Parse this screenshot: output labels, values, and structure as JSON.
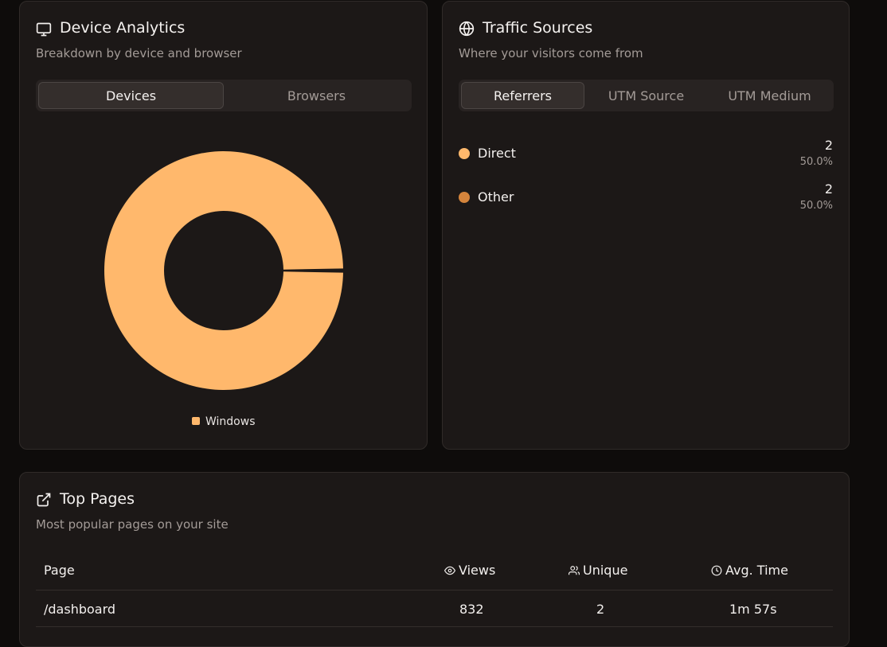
{
  "device_analytics": {
    "title": "Device Analytics",
    "subtitle": "Breakdown by device and browser",
    "tabs": [
      "Devices",
      "Browsers"
    ],
    "active_tab": 0,
    "chart": {
      "type": "pie",
      "categories": [
        "Windows"
      ],
      "values": [
        100
      ],
      "colors": [
        "#ffb86c"
      ]
    }
  },
  "traffic_sources": {
    "title": "Traffic Sources",
    "subtitle": "Where your visitors come from",
    "tabs": [
      "Referrers",
      "UTM Source",
      "UTM Medium"
    ],
    "active_tab": 0,
    "rows": [
      {
        "name": "Direct",
        "count": 2,
        "share": "50.0%",
        "color": "#ffb86c"
      },
      {
        "name": "Other",
        "count": 2,
        "share": "50.0%",
        "color": "#d4843c"
      }
    ]
  },
  "top_pages": {
    "title": "Top Pages",
    "subtitle": "Most popular pages on your site",
    "columns": [
      "Page",
      "Views",
      "Unique",
      "Avg. Time"
    ],
    "rows": [
      [
        "/dashboard",
        832,
        2,
        "1m 57s"
      ]
    ]
  }
}
